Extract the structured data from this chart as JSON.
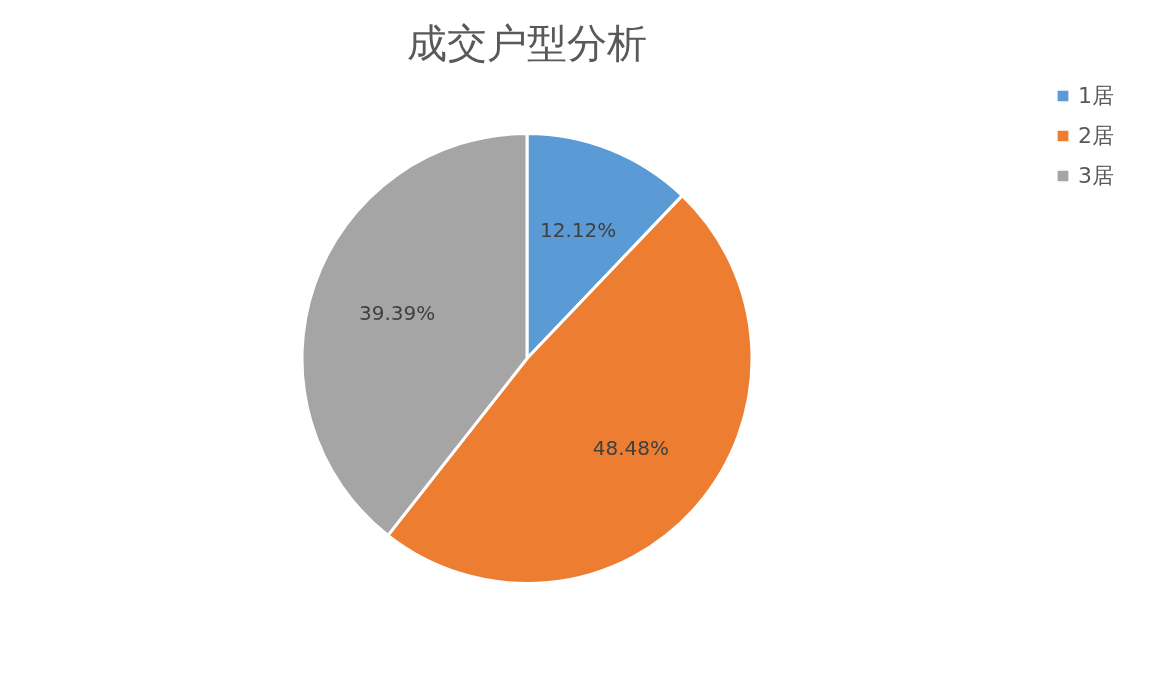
{
  "chart_data": {
    "type": "pie",
    "title": "成交户型分析",
    "categories": [
      "1居",
      "2居",
      "3居"
    ],
    "values": [
      12.12,
      48.48,
      39.39
    ],
    "value_labels": [
      "12.12%",
      "48.48%",
      "39.39%"
    ],
    "colors": [
      "#5b9bd5",
      "#ed7d31",
      "#a5a5a5"
    ],
    "legend": "right"
  }
}
